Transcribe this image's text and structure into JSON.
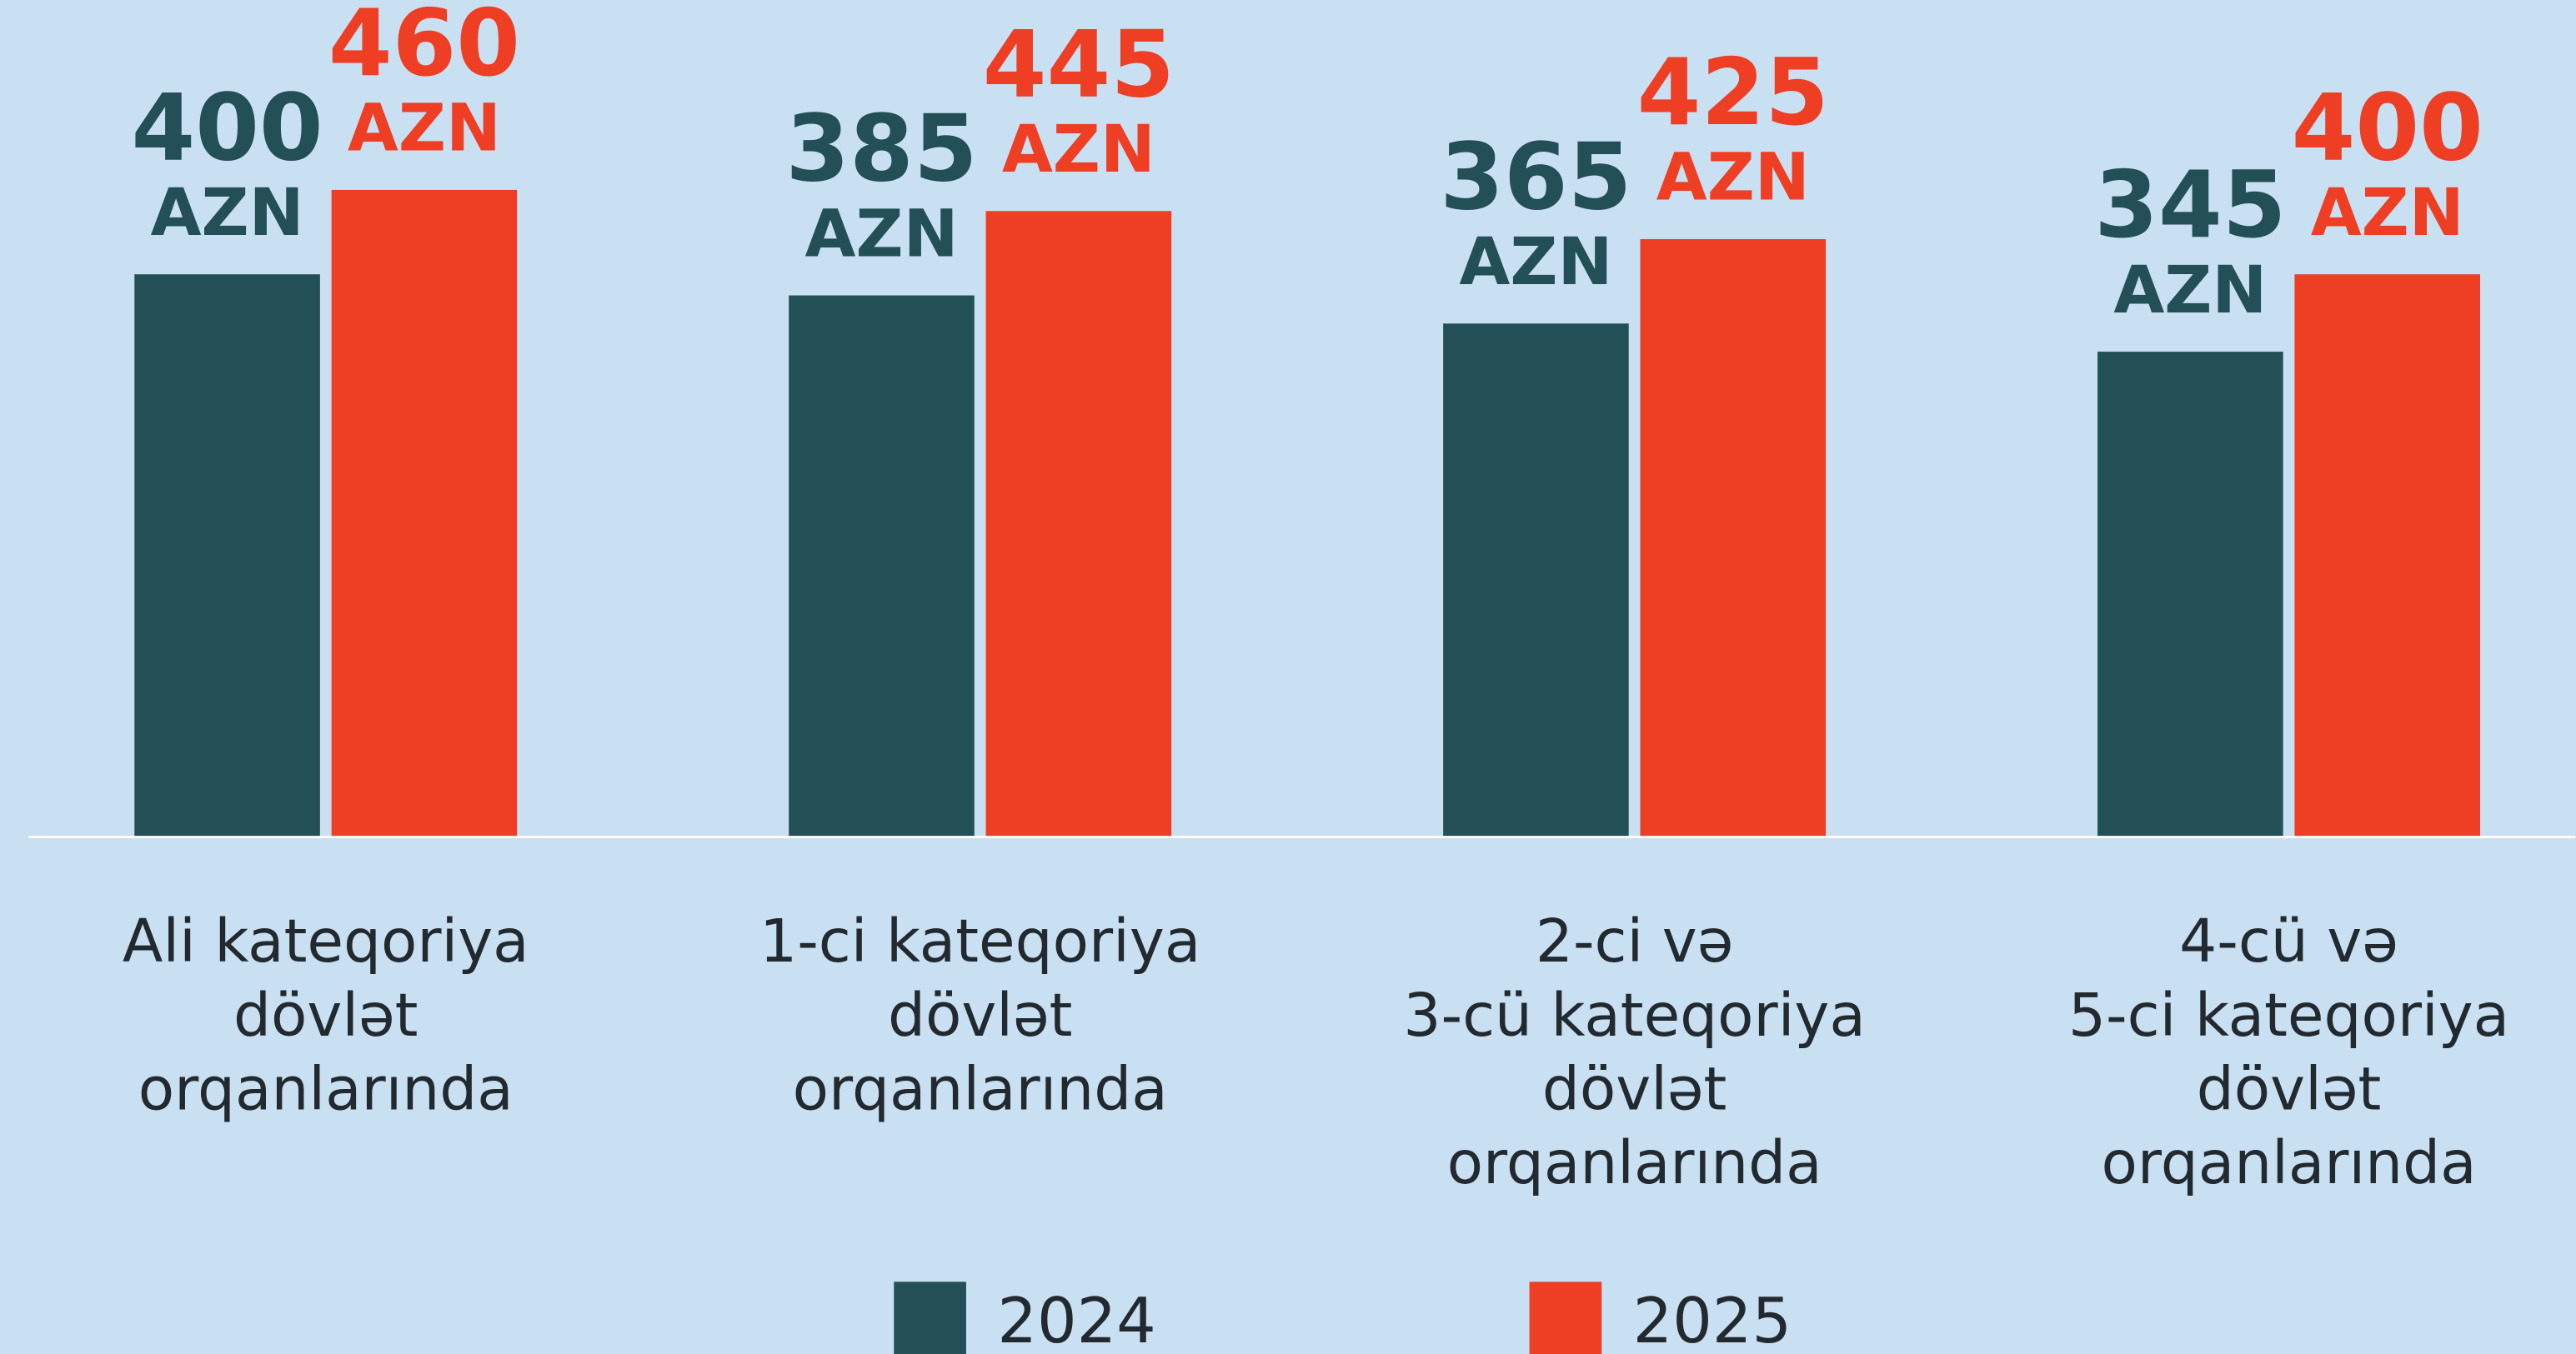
{
  "chart_data": {
    "type": "bar",
    "categories": [
      [
        "Ali kateqoriya",
        "dövlət",
        "orqanlarında"
      ],
      [
        "1-ci kateqoriya",
        "dövlət",
        "orqanlarında"
      ],
      [
        "2-ci və",
        "3-cü kateqoriya",
        "dövlət",
        "orqanlarında"
      ],
      [
        "4-cü və",
        "5-ci kateqoriya",
        "dövlət",
        "orqanlarında"
      ]
    ],
    "series": [
      {
        "name": "2024",
        "color": "#234f56",
        "values": [
          400,
          385,
          365,
          345
        ],
        "value_labels": [
          [
            "400",
            "AZN"
          ],
          [
            "385",
            "AZN"
          ],
          [
            "365",
            "AZN"
          ],
          [
            "345",
            "AZN"
          ]
        ]
      },
      {
        "name": "2025",
        "color": "#ee3e23",
        "values": [
          460,
          445,
          425,
          400
        ],
        "value_labels": [
          [
            "460",
            "AZN"
          ],
          [
            "445",
            "AZN"
          ],
          [
            "425",
            "AZN"
          ],
          [
            "400",
            "AZN"
          ]
        ]
      }
    ],
    "ylim": [
      0,
      595
    ]
  }
}
